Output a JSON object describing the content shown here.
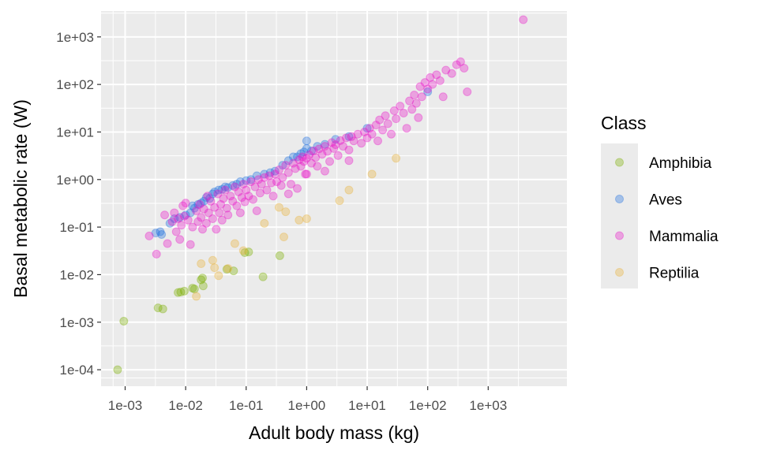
{
  "chart_data": {
    "type": "scatter",
    "title": "",
    "xlabel": "Adult body mass (kg)",
    "ylabel": "Basal metabolic rate (W)",
    "xscale": "log10",
    "yscale": "log10",
    "xlim": [
      0.0004,
      20000
    ],
    "ylim": [
      4.5e-05,
      3500
    ],
    "xticks": [
      0.001,
      0.01,
      0.1,
      1,
      10,
      100,
      1000
    ],
    "xtick_labels": [
      "1e-03",
      "1e-02",
      "1e-01",
      "1e+00",
      "1e+01",
      "1e+02",
      "1e+03"
    ],
    "yticks": [
      0.0001,
      0.001,
      0.01,
      0.1,
      1,
      10,
      100,
      1000
    ],
    "ytick_labels": [
      "1e-04",
      "1e-03",
      "1e-02",
      "1e-01",
      "1e+00",
      "1e+01",
      "1e+02",
      "1e+03"
    ],
    "grid": true,
    "legend_title": "Class",
    "legend_position": "right",
    "point_alpha": 0.35,
    "series": [
      {
        "name": "Amphibia",
        "color": "#7cae00",
        "points": [
          [
            0.00075,
            0.0001
          ],
          [
            0.00095,
            0.00105
          ],
          [
            0.0035,
            0.002
          ],
          [
            0.0042,
            0.0019
          ],
          [
            0.0075,
            0.0042
          ],
          [
            0.0083,
            0.0043
          ],
          [
            0.0095,
            0.0045
          ],
          [
            0.013,
            0.0052
          ],
          [
            0.014,
            0.005
          ],
          [
            0.018,
            0.0078
          ],
          [
            0.019,
            0.0085
          ],
          [
            0.0195,
            0.0058
          ],
          [
            0.048,
            0.013
          ],
          [
            0.062,
            0.012
          ],
          [
            0.095,
            0.029
          ],
          [
            0.11,
            0.03
          ],
          [
            0.19,
            0.009
          ],
          [
            0.36,
            0.025
          ]
        ]
      },
      {
        "name": "Aves",
        "color": "#1f6fe0",
        "points": [
          [
            0.0032,
            0.075
          ],
          [
            0.004,
            0.07
          ],
          [
            0.0038,
            0.08
          ],
          [
            0.0055,
            0.12
          ],
          [
            0.0065,
            0.15
          ],
          [
            0.008,
            0.16
          ],
          [
            0.01,
            0.18
          ],
          [
            0.012,
            0.2
          ],
          [
            0.013,
            0.28
          ],
          [
            0.014,
            0.25
          ],
          [
            0.016,
            0.3
          ],
          [
            0.018,
            0.32
          ],
          [
            0.02,
            0.35
          ],
          [
            0.022,
            0.42
          ],
          [
            0.025,
            0.4
          ],
          [
            0.028,
            0.5
          ],
          [
            0.03,
            0.55
          ],
          [
            0.035,
            0.6
          ],
          [
            0.04,
            0.62
          ],
          [
            0.045,
            0.7
          ],
          [
            0.05,
            0.68
          ],
          [
            0.06,
            0.75
          ],
          [
            0.07,
            0.8
          ],
          [
            0.08,
            0.9
          ],
          [
            0.1,
            0.95
          ],
          [
            0.12,
            1.0
          ],
          [
            0.15,
            1.2
          ],
          [
            0.2,
            1.3
          ],
          [
            0.25,
            1.4
          ],
          [
            0.3,
            1.5
          ],
          [
            0.4,
            2.0
          ],
          [
            0.5,
            2.5
          ],
          [
            0.6,
            3.0
          ],
          [
            0.7,
            3.0
          ],
          [
            0.8,
            3.5
          ],
          [
            0.9,
            3.8
          ],
          [
            1.0,
            4.5
          ],
          [
            1.0,
            6.5
          ],
          [
            1.2,
            4.0
          ],
          [
            1.5,
            5.0
          ],
          [
            2.0,
            5.5
          ],
          [
            3.0,
            7.0
          ],
          [
            5.0,
            8.0
          ],
          [
            10.0,
            12.0
          ],
          [
            100,
            70
          ]
        ]
      },
      {
        "name": "Mammalia",
        "color": "#e816c8",
        "points": [
          [
            0.0025,
            0.065
          ],
          [
            0.0045,
            0.18
          ],
          [
            0.0033,
            0.027
          ],
          [
            0.005,
            0.045
          ],
          [
            0.006,
            0.13
          ],
          [
            0.0065,
            0.2
          ],
          [
            0.007,
            0.08
          ],
          [
            0.0075,
            0.15
          ],
          [
            0.008,
            0.055
          ],
          [
            0.0085,
            0.11
          ],
          [
            0.009,
            0.28
          ],
          [
            0.0095,
            0.17
          ],
          [
            0.01,
            0.32
          ],
          [
            0.011,
            0.14
          ],
          [
            0.012,
            0.043
          ],
          [
            0.013,
            0.1
          ],
          [
            0.015,
            0.22
          ],
          [
            0.016,
            0.13
          ],
          [
            0.017,
            0.3
          ],
          [
            0.018,
            0.16
          ],
          [
            0.019,
            0.09
          ],
          [
            0.02,
            0.24
          ],
          [
            0.022,
            0.12
          ],
          [
            0.023,
            0.45
          ],
          [
            0.024,
            0.2
          ],
          [
            0.026,
            0.35
          ],
          [
            0.028,
            0.15
          ],
          [
            0.03,
            0.26
          ],
          [
            0.032,
            0.09
          ],
          [
            0.034,
            0.5
          ],
          [
            0.036,
            0.2
          ],
          [
            0.038,
            0.3
          ],
          [
            0.04,
            0.14
          ],
          [
            0.042,
            0.4
          ],
          [
            0.045,
            0.6
          ],
          [
            0.048,
            0.25
          ],
          [
            0.05,
            0.18
          ],
          [
            0.055,
            0.45
          ],
          [
            0.06,
            0.35
          ],
          [
            0.065,
            0.7
          ],
          [
            0.07,
            0.28
          ],
          [
            0.075,
            0.55
          ],
          [
            0.08,
            0.2
          ],
          [
            0.085,
            0.42
          ],
          [
            0.09,
            0.8
          ],
          [
            0.095,
            0.34
          ],
          [
            0.1,
            0.6
          ],
          [
            0.11,
            0.45
          ],
          [
            0.12,
            0.9
          ],
          [
            0.13,
            0.38
          ],
          [
            0.14,
            0.7
          ],
          [
            0.15,
            0.22
          ],
          [
            0.16,
            1.0
          ],
          [
            0.17,
            0.52
          ],
          [
            0.18,
            0.8
          ],
          [
            0.2,
            1.1
          ],
          [
            0.22,
            0.6
          ],
          [
            0.24,
            1.2
          ],
          [
            0.26,
            0.85
          ],
          [
            0.28,
            0.45
          ],
          [
            0.3,
            1.3
          ],
          [
            0.32,
            0.9
          ],
          [
            0.35,
            1.6
          ],
          [
            0.38,
            0.75
          ],
          [
            0.4,
            1.1
          ],
          [
            0.45,
            2.0
          ],
          [
            0.5,
            1.4
          ],
          [
            0.55,
            0.8
          ],
          [
            0.6,
            2.2
          ],
          [
            0.65,
            1.7
          ],
          [
            0.7,
            0.65
          ],
          [
            0.75,
            2.6
          ],
          [
            0.8,
            1.9
          ],
          [
            0.85,
            3.0
          ],
          [
            0.9,
            2.4
          ],
          [
            0.95,
            1.3
          ],
          [
            1.0,
            2.8
          ],
          [
            1.1,
            3.3
          ],
          [
            1.2,
            2.2
          ],
          [
            1.3,
            4.0
          ],
          [
            1.4,
            2.9
          ],
          [
            1.5,
            1.9
          ],
          [
            1.6,
            4.4
          ],
          [
            1.8,
            3.4
          ],
          [
            2.0,
            5.0
          ],
          [
            2.2,
            3.9
          ],
          [
            2.4,
            2.4
          ],
          [
            2.6,
            6.0
          ],
          [
            2.8,
            4.5
          ],
          [
            3.0,
            5.4
          ],
          [
            3.3,
            3.2
          ],
          [
            3.6,
            6.6
          ],
          [
            4.0,
            5.0
          ],
          [
            4.5,
            7.5
          ],
          [
            5.0,
            4.2
          ],
          [
            5.5,
            8.0
          ],
          [
            6.0,
            6.5
          ],
          [
            7.0,
            9.0
          ],
          [
            8.0,
            5.8
          ],
          [
            9.0,
            10.0
          ],
          [
            10.0,
            7.5
          ],
          [
            11.0,
            12.0
          ],
          [
            12.0,
            9.0
          ],
          [
            14.0,
            14.0
          ],
          [
            15.0,
            6.5
          ],
          [
            16.0,
            18.0
          ],
          [
            18.0,
            11.0
          ],
          [
            20.0,
            22.0
          ],
          [
            22.0,
            15.0
          ],
          [
            25.0,
            9.0
          ],
          [
            28.0,
            28.0
          ],
          [
            30.0,
            19.0
          ],
          [
            35.0,
            35.0
          ],
          [
            40.0,
            25.0
          ],
          [
            45.0,
            12.0
          ],
          [
            50.0,
            45.0
          ],
          [
            55.0,
            30.0
          ],
          [
            60.0,
            60.0
          ],
          [
            65.0,
            40.0
          ],
          [
            70.0,
            20.0
          ],
          [
            75.0,
            90.0
          ],
          [
            80.0,
            55.0
          ],
          [
            90.0,
            110.0
          ],
          [
            100.0,
            80.0
          ],
          [
            110.0,
            140.0
          ],
          [
            120.0,
            100.0
          ],
          [
            140.0,
            160.0
          ],
          [
            160.0,
            120.0
          ],
          [
            180.0,
            55.0
          ],
          [
            200.0,
            200.0
          ],
          [
            250.0,
            170.0
          ],
          [
            300.0,
            260.0
          ],
          [
            350.0,
            300.0
          ],
          [
            400.0,
            220.0
          ],
          [
            450.0,
            70.0
          ],
          [
            3800.0,
            2300.0
          ],
          [
            1.0,
            1.3
          ],
          [
            0.5,
            0.5
          ],
          [
            2.0,
            1.5
          ],
          [
            5.0,
            2.5
          ]
        ]
      },
      {
        "name": "Reptilia",
        "color": "#e8b13a",
        "points": [
          [
            0.015,
            0.0035
          ],
          [
            0.018,
            0.017
          ],
          [
            0.028,
            0.02
          ],
          [
            0.03,
            0.014
          ],
          [
            0.035,
            0.0095
          ],
          [
            0.05,
            0.0135
          ],
          [
            0.065,
            0.045
          ],
          [
            0.09,
            0.032
          ],
          [
            0.2,
            0.12
          ],
          [
            0.35,
            0.26
          ],
          [
            0.42,
            0.062
          ],
          [
            0.45,
            0.21
          ],
          [
            0.75,
            0.14
          ],
          [
            1.0,
            0.15
          ],
          [
            3.5,
            0.36
          ],
          [
            5.0,
            0.6
          ],
          [
            12.0,
            1.3
          ],
          [
            30.0,
            2.8
          ]
        ]
      }
    ]
  }
}
